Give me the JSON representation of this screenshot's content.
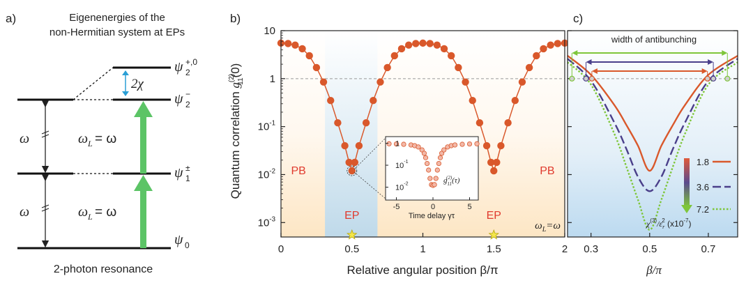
{
  "panel_a": {
    "label": "a)",
    "title_line1": "Eigenenergies of the",
    "title_line2": "non-Hermitian system at EPs",
    "bottom_label": "2-photon resonance",
    "omega": "ω",
    "omega_L_eq": "= ω",
    "omega_L": "ω",
    "L_sub": "L",
    "chi_label": "2χ",
    "levels": {
      "psi2_plus": "ψ",
      "psi2_plus_sup": "+,0",
      "psi2_plus_sub": "2",
      "psi2_minus": "ψ",
      "psi2_minus_sup": "−",
      "psi2_minus_sub": "2",
      "psi1": "ψ",
      "psi1_sup": "±",
      "psi1_sub": "1",
      "psi0": "ψ",
      "psi0_sub": "0"
    },
    "colors": {
      "green": "#5cc466",
      "blue": "#2a9fd6"
    }
  },
  "chart_data": [
    {
      "type": "scatter",
      "panel": "b)",
      "title": "",
      "xlabel": "Relative angular position β/π",
      "ylabel": "Quantum correlation g11(2)(0)",
      "ylabel_parts": {
        "main": "Quantum correlation ",
        "g": "g",
        "sub": "11",
        "sup": "(2)",
        "tail": "(0)"
      },
      "xlim": [
        0,
        2
      ],
      "ylim": [
        0.0005,
        10
      ],
      "yscale": "log",
      "x_ticks": [
        "0",
        "0.5",
        "1",
        "1.5",
        "2"
      ],
      "y_ticks": [
        {
          "base": "10",
          "exp": ""
        },
        {
          "base": "1",
          "exp": ""
        },
        {
          "base": "10",
          "exp": "-1"
        },
        {
          "base": "10",
          "exp": "-2"
        },
        {
          "base": "10",
          "exp": "-3"
        }
      ],
      "reference_line": 1,
      "series": [
        {
          "name": "g2(0)",
          "color": "#d9582b",
          "points": [
            [
              0,
              5.5
            ],
            [
              0.05,
              5.4
            ],
            [
              0.1,
              5.0
            ],
            [
              0.15,
              4.2
            ],
            [
              0.2,
              3.0
            ],
            [
              0.25,
              1.7
            ],
            [
              0.3,
              0.85
            ],
            [
              0.35,
              0.35
            ],
            [
              0.4,
              0.12
            ],
            [
              0.45,
              0.04
            ],
            [
              0.48,
              0.018
            ],
            [
              0.5,
              0.012
            ],
            [
              0.52,
              0.018
            ],
            [
              0.55,
              0.04
            ],
            [
              0.6,
              0.12
            ],
            [
              0.65,
              0.35
            ],
            [
              0.7,
              0.85
            ],
            [
              0.75,
              1.7
            ],
            [
              0.8,
              3.0
            ],
            [
              0.85,
              4.2
            ],
            [
              0.9,
              5.0
            ],
            [
              0.95,
              5.4
            ],
            [
              1.0,
              5.5
            ],
            [
              1.05,
              5.4
            ],
            [
              1.1,
              5.0
            ],
            [
              1.15,
              4.2
            ],
            [
              1.2,
              3.0
            ],
            [
              1.25,
              1.7
            ],
            [
              1.3,
              0.85
            ],
            [
              1.35,
              0.35
            ],
            [
              1.4,
              0.12
            ],
            [
              1.45,
              0.04
            ],
            [
              1.48,
              0.018
            ],
            [
              1.5,
              0.012
            ],
            [
              1.52,
              0.018
            ],
            [
              1.55,
              0.04
            ],
            [
              1.6,
              0.12
            ],
            [
              1.65,
              0.35
            ],
            [
              1.7,
              0.85
            ],
            [
              1.75,
              1.7
            ],
            [
              1.8,
              3.0
            ],
            [
              1.85,
              4.2
            ],
            [
              1.9,
              5.0
            ],
            [
              1.95,
              5.4
            ],
            [
              2.0,
              5.5
            ]
          ]
        }
      ],
      "annotations": [
        {
          "text": "PB",
          "x": 0.32,
          "y": 0.012
        },
        {
          "text": "PB",
          "x": 1.68,
          "y": 0.012
        },
        {
          "text": "EP",
          "x": 0.5,
          "y": 0.0012
        },
        {
          "text": "EP",
          "x": 1.5,
          "y": 0.0012
        },
        {
          "text": "ωL=ω",
          "x": 1.85,
          "y": 0.0009
        }
      ],
      "shaded_region": [
        0.31,
        0.68
      ]
    },
    {
      "type": "line",
      "panel": "b) inset",
      "title": "",
      "xlabel": "Time delay γτ",
      "ylabel": "",
      "legend": "g11(2)(τ)",
      "legend_parts": {
        "g": "g",
        "sub": "11",
        "sup": "(2)",
        "tail": "(τ)"
      },
      "xlim": [
        -6,
        6
      ],
      "ylim": [
        0.004,
        1.3
      ],
      "x_ticks": [
        "-5",
        "0",
        "5"
      ],
      "y_ticks": [
        {
          "base": "1",
          "exp": ""
        },
        {
          "base": "10",
          "exp": "-1"
        },
        {
          "base": "10",
          "exp": "-2"
        }
      ],
      "series": [
        {
          "name": "g2(tau)",
          "points": [
            [
              -6,
              0.95
            ],
            [
              -5,
              0.93
            ],
            [
              -4,
              0.9
            ],
            [
              -3,
              0.84
            ],
            [
              -2.5,
              0.78
            ],
            [
              -2,
              0.68
            ],
            [
              -1.5,
              0.5
            ],
            [
              -1.2,
              0.35
            ],
            [
              -1,
              0.22
            ],
            [
              -0.8,
              0.12
            ],
            [
              -0.6,
              0.06
            ],
            [
              -0.4,
              0.025
            ],
            [
              -0.2,
              0.013
            ],
            [
              0,
              0.012
            ],
            [
              0.2,
              0.013
            ],
            [
              0.4,
              0.025
            ],
            [
              0.6,
              0.06
            ],
            [
              0.8,
              0.12
            ],
            [
              1,
              0.22
            ],
            [
              1.2,
              0.35
            ],
            [
              1.5,
              0.5
            ],
            [
              2,
              0.68
            ],
            [
              2.5,
              0.78
            ],
            [
              3,
              0.84
            ],
            [
              4,
              0.9
            ],
            [
              5,
              0.93
            ],
            [
              6,
              0.95
            ]
          ]
        }
      ]
    },
    {
      "type": "line",
      "panel": "c)",
      "title": "width of antibunching",
      "xlabel": "β/π",
      "ylabel": "",
      "xlim": [
        0.22,
        0.8
      ],
      "ylim": [
        0.0005,
        10
      ],
      "yscale": "log",
      "x_ticks": [
        "0.3",
        "0.5",
        "0.7"
      ],
      "reference_line": 1,
      "legend_title": "χ(3)/εr2 (x10-7)",
      "legend_title_parts": {
        "chi": "χ",
        "sup": "(3)",
        "eps": "/ε",
        "sub": "r",
        "sup2": "2",
        "tail": " (x10",
        "exp": "-7",
        "close": ")"
      },
      "series": [
        {
          "name": "1.8",
          "color": "#d9582b",
          "dash": "solid",
          "points": [
            [
              0.22,
              3.0
            ],
            [
              0.3,
              1.2
            ],
            [
              0.38,
              0.28
            ],
            [
              0.42,
              0.11
            ],
            [
              0.46,
              0.04
            ],
            [
              0.5,
              0.012
            ],
            [
              0.54,
              0.04
            ],
            [
              0.58,
              0.11
            ],
            [
              0.62,
              0.28
            ],
            [
              0.7,
              1.2
            ],
            [
              0.8,
              3.0
            ]
          ]
        },
        {
          "name": "3.6",
          "color": "#4a3f8a",
          "dash": "long",
          "points": [
            [
              0.22,
              2.6
            ],
            [
              0.3,
              0.9
            ],
            [
              0.38,
              0.12
            ],
            [
              0.42,
              0.035
            ],
            [
              0.46,
              0.009
            ],
            [
              0.5,
              0.0045
            ],
            [
              0.54,
              0.009
            ],
            [
              0.58,
              0.035
            ],
            [
              0.62,
              0.12
            ],
            [
              0.7,
              0.9
            ],
            [
              0.8,
              2.6
            ]
          ]
        },
        {
          "name": "7.2",
          "color": "#7ec63a",
          "dash": "dot",
          "points": [
            [
              0.22,
              2.2
            ],
            [
              0.3,
              0.75
            ],
            [
              0.38,
              0.07
            ],
            [
              0.42,
              0.015
            ],
            [
              0.46,
              0.003
            ],
            [
              0.5,
              0.0007
            ],
            [
              0.54,
              0.003
            ],
            [
              0.58,
              0.015
            ],
            [
              0.62,
              0.07
            ],
            [
              0.7,
              0.75
            ],
            [
              0.8,
              2.2
            ]
          ]
        }
      ]
    }
  ]
}
